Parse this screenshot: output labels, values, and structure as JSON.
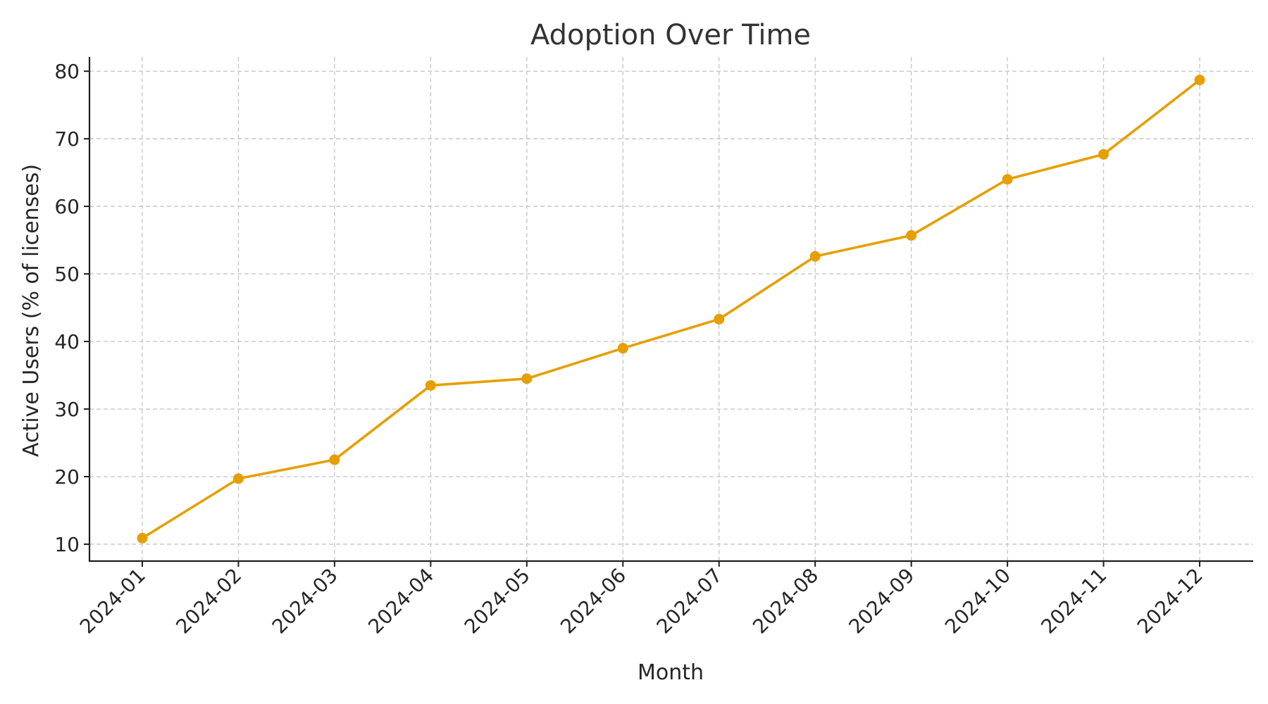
{
  "chart_data": {
    "type": "line",
    "title": "Adoption Over Time",
    "xlabel": "Month",
    "ylabel": "Active Users (% of licenses)",
    "categories": [
      "2024-01",
      "2024-02",
      "2024-03",
      "2024-04",
      "2024-05",
      "2024-06",
      "2024-07",
      "2024-08",
      "2024-09",
      "2024-10",
      "2024-11",
      "2024-12"
    ],
    "series": [
      {
        "values": [
          10.9,
          19.7,
          22.5,
          33.5,
          34.5,
          39.0,
          43.3,
          52.6,
          55.7,
          64.0,
          67.7,
          78.7
        ]
      }
    ],
    "yticks": [
      10,
      20,
      30,
      40,
      50,
      60,
      70,
      80
    ],
    "ylim": [
      7.5,
      82.1
    ],
    "grid": true,
    "colors": {
      "series": "#E69F00",
      "grid": "#c8c8c8",
      "axis": "#1f1f1f",
      "text": "#262626"
    }
  }
}
